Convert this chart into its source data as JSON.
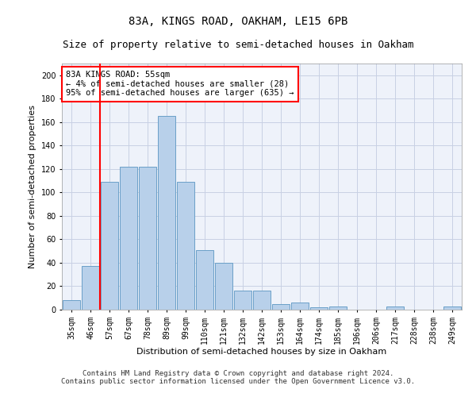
{
  "title": "83A, KINGS ROAD, OAKHAM, LE15 6PB",
  "subtitle": "Size of property relative to semi-detached houses in Oakham",
  "xlabel": "Distribution of semi-detached houses by size in Oakham",
  "ylabel": "Number of semi-detached properties",
  "categories": [
    "35sqm",
    "46sqm",
    "57sqm",
    "67sqm",
    "78sqm",
    "89sqm",
    "99sqm",
    "110sqm",
    "121sqm",
    "132sqm",
    "142sqm",
    "153sqm",
    "164sqm",
    "174sqm",
    "185sqm",
    "196sqm",
    "206sqm",
    "217sqm",
    "228sqm",
    "238sqm",
    "249sqm"
  ],
  "values": [
    8,
    37,
    109,
    122,
    122,
    165,
    109,
    51,
    40,
    16,
    16,
    5,
    6,
    2,
    3,
    0,
    0,
    3,
    0,
    0,
    3
  ],
  "bar_color": "#b8d0ea",
  "bar_edge_color": "#6a9fc8",
  "vline_x": 1.5,
  "vline_color": "red",
  "annotation_title": "83A KINGS ROAD: 55sqm",
  "annotation_line1": "← 4% of semi-detached houses are smaller (28)",
  "annotation_line2": "95% of semi-detached houses are larger (635) →",
  "annotation_box_color": "white",
  "annotation_box_edge": "red",
  "ylim": [
    0,
    210
  ],
  "yticks": [
    0,
    20,
    40,
    60,
    80,
    100,
    120,
    140,
    160,
    180,
    200
  ],
  "footer1": "Contains HM Land Registry data © Crown copyright and database right 2024.",
  "footer2": "Contains public sector information licensed under the Open Government Licence v3.0.",
  "bg_color": "#eef2fa",
  "grid_color": "#c8d0e4",
  "title_fontsize": 10,
  "subtitle_fontsize": 9,
  "xlabel_fontsize": 8,
  "ylabel_fontsize": 8,
  "tick_fontsize": 7,
  "footer_fontsize": 6.5
}
